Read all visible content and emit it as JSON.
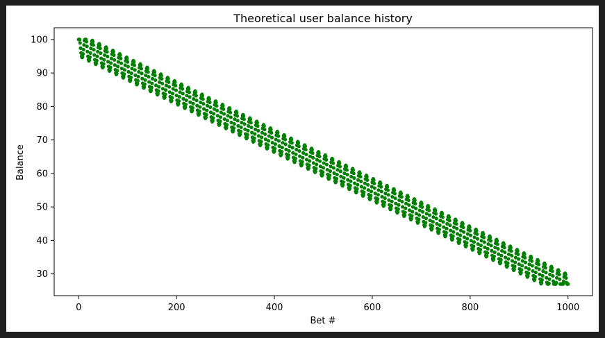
{
  "chart_data": {
    "type": "scatter",
    "title": "Theoretical user balance history",
    "xlabel": "Bet #",
    "ylabel": "Balance",
    "xlim": [
      -50,
      1050
    ],
    "ylim": [
      23.5,
      103.5
    ],
    "xticks": [
      0,
      200,
      400,
      600,
      800,
      1000
    ],
    "yticks": [
      30,
      40,
      50,
      60,
      70,
      80,
      90,
      100
    ],
    "grid": false,
    "legend": "none",
    "marker_color": "#008000",
    "series": [
      {
        "pattern": "repeating win/loss streak cycles superimposed on a steady downward trend",
        "x_range": [
          0,
          1000
        ],
        "start_value": 100,
        "end_value": 28,
        "cycle_length_bets": 14,
        "cycle_amplitude": 3.5,
        "overall_min": 27,
        "overall_max": 100,
        "anchor_points": [
          {
            "x": 0,
            "y": 100
          },
          {
            "x": 6,
            "y": 93
          },
          {
            "x": 14,
            "y": 100
          },
          {
            "x": 200,
            "y": 86
          },
          {
            "x": 400,
            "y": 70
          },
          {
            "x": 600,
            "y": 58
          },
          {
            "x": 800,
            "y": 42
          },
          {
            "x": 1000,
            "y": 28
          }
        ]
      }
    ]
  }
}
